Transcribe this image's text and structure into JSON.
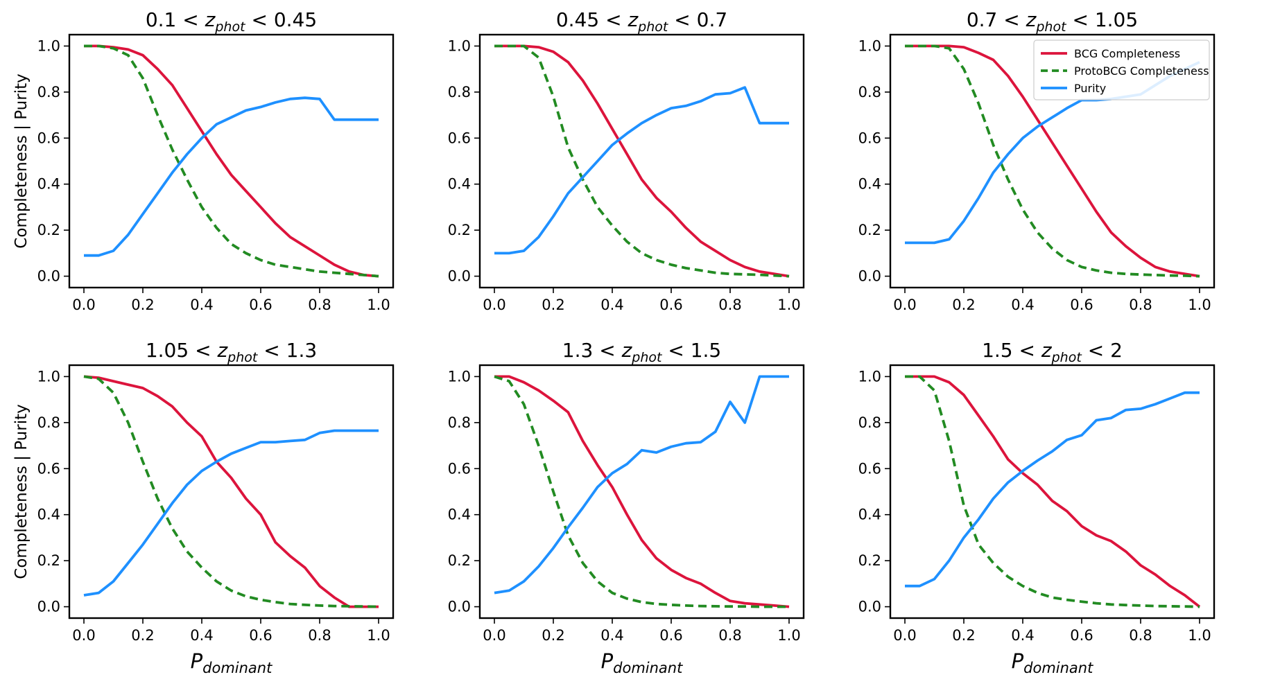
{
  "figure": {
    "ylabel": "Completeness | Purity",
    "xlabel_base": "P",
    "xlabel_sub": "dominant",
    "colors": {
      "bcg": "#dc143c",
      "proto": "#228b22",
      "purity": "#1e90ff"
    }
  },
  "legend": {
    "placement": "top-right of panel 3",
    "entries": [
      {
        "key": "bcg",
        "label": "BCG Completeness",
        "style": "solid"
      },
      {
        "key": "proto",
        "label": "ProtoBCG Completeness",
        "style": "dashed"
      },
      {
        "key": "purity",
        "label": "Purity",
        "style": "solid"
      }
    ]
  },
  "chart_data": [
    {
      "type": "line",
      "title": {
        "lo": "0.1",
        "hi": "0.45",
        "var": "z",
        "sub": "phot"
      },
      "xlim": [
        0,
        1
      ],
      "ylim": [
        0,
        1
      ],
      "xticks": [
        "0.0",
        "0.2",
        "0.4",
        "0.6",
        "0.8",
        "1.0"
      ],
      "yticks": [
        "0.0",
        "0.2",
        "0.4",
        "0.6",
        "0.8",
        "1.0"
      ],
      "x": [
        0,
        0.05,
        0.1,
        0.15,
        0.2,
        0.25,
        0.3,
        0.35,
        0.4,
        0.45,
        0.5,
        0.55,
        0.6,
        0.65,
        0.7,
        0.75,
        0.8,
        0.85,
        0.9,
        0.95,
        1.0
      ],
      "series": [
        {
          "key": "bcg",
          "name": "BCG Completeness",
          "values": [
            1.0,
            1.0,
            0.995,
            0.985,
            0.96,
            0.9,
            0.83,
            0.73,
            0.63,
            0.53,
            0.44,
            0.37,
            0.3,
            0.23,
            0.17,
            0.13,
            0.09,
            0.05,
            0.02,
            0.005,
            0.0
          ]
        },
        {
          "key": "proto",
          "name": "ProtoBCG Completeness",
          "values": [
            1.0,
            1.0,
            0.99,
            0.96,
            0.86,
            0.7,
            0.55,
            0.42,
            0.3,
            0.21,
            0.14,
            0.1,
            0.07,
            0.05,
            0.04,
            0.03,
            0.02,
            0.015,
            0.01,
            0.005,
            0.0
          ]
        },
        {
          "key": "purity",
          "name": "Purity",
          "values": [
            0.09,
            0.09,
            0.11,
            0.18,
            0.27,
            0.36,
            0.45,
            0.53,
            0.6,
            0.66,
            0.69,
            0.72,
            0.735,
            0.755,
            0.77,
            0.775,
            0.77,
            0.68,
            0.68,
            0.68,
            0.68
          ]
        }
      ]
    },
    {
      "type": "line",
      "title": {
        "lo": "0.45",
        "hi": "0.7",
        "var": "z",
        "sub": "phot"
      },
      "xlim": [
        0,
        1
      ],
      "ylim": [
        0,
        1
      ],
      "xticks": [
        "0.0",
        "0.2",
        "0.4",
        "0.6",
        "0.8",
        "1.0"
      ],
      "yticks": [
        "0.0",
        "0.2",
        "0.4",
        "0.6",
        "0.8",
        "1.0"
      ],
      "x": [
        0,
        0.05,
        0.1,
        0.15,
        0.2,
        0.25,
        0.3,
        0.35,
        0.4,
        0.45,
        0.5,
        0.55,
        0.6,
        0.65,
        0.7,
        0.75,
        0.8,
        0.85,
        0.9,
        0.95,
        1.0
      ],
      "series": [
        {
          "key": "bcg",
          "name": "BCG Completeness",
          "values": [
            1.0,
            1.0,
            1.0,
            0.995,
            0.975,
            0.93,
            0.85,
            0.75,
            0.64,
            0.53,
            0.42,
            0.34,
            0.28,
            0.21,
            0.15,
            0.11,
            0.07,
            0.04,
            0.02,
            0.01,
            0.0
          ]
        },
        {
          "key": "proto",
          "name": "ProtoBCG Completeness",
          "values": [
            1.0,
            1.0,
            1.0,
            0.95,
            0.78,
            0.56,
            0.42,
            0.3,
            0.22,
            0.15,
            0.1,
            0.07,
            0.05,
            0.035,
            0.025,
            0.015,
            0.01,
            0.008,
            0.006,
            0.003,
            0.0
          ]
        },
        {
          "key": "purity",
          "name": "Purity",
          "values": [
            0.1,
            0.1,
            0.11,
            0.17,
            0.26,
            0.36,
            0.43,
            0.5,
            0.57,
            0.62,
            0.665,
            0.7,
            0.73,
            0.74,
            0.76,
            0.79,
            0.795,
            0.82,
            0.665,
            0.665,
            0.665
          ]
        }
      ]
    },
    {
      "type": "line",
      "title": {
        "lo": "0.7",
        "hi": "1.05",
        "var": "z",
        "sub": "phot"
      },
      "xlim": [
        0,
        1
      ],
      "ylim": [
        0,
        1
      ],
      "xticks": [
        "0.0",
        "0.2",
        "0.4",
        "0.6",
        "0.8",
        "1.0"
      ],
      "yticks": [
        "0.0",
        "0.2",
        "0.4",
        "0.6",
        "0.8",
        "1.0"
      ],
      "x": [
        0,
        0.05,
        0.1,
        0.15,
        0.2,
        0.25,
        0.3,
        0.35,
        0.4,
        0.45,
        0.5,
        0.55,
        0.6,
        0.65,
        0.7,
        0.75,
        0.8,
        0.85,
        0.9,
        0.95,
        1.0
      ],
      "series": [
        {
          "key": "bcg",
          "name": "BCG Completeness",
          "values": [
            1.0,
            1.0,
            1.0,
            1.0,
            0.995,
            0.97,
            0.94,
            0.87,
            0.78,
            0.68,
            0.58,
            0.48,
            0.38,
            0.28,
            0.19,
            0.13,
            0.08,
            0.04,
            0.02,
            0.01,
            0.0
          ]
        },
        {
          "key": "proto",
          "name": "ProtoBCG Completeness",
          "values": [
            1.0,
            1.0,
            1.0,
            0.99,
            0.9,
            0.75,
            0.57,
            0.42,
            0.29,
            0.19,
            0.12,
            0.07,
            0.04,
            0.025,
            0.015,
            0.01,
            0.007,
            0.005,
            0.003,
            0.002,
            0.0
          ]
        },
        {
          "key": "purity",
          "name": "Purity",
          "values": [
            0.145,
            0.145,
            0.145,
            0.16,
            0.24,
            0.34,
            0.45,
            0.53,
            0.6,
            0.65,
            0.69,
            0.73,
            0.765,
            0.765,
            0.77,
            0.78,
            0.79,
            0.83,
            0.87,
            0.9,
            0.93
          ]
        }
      ]
    },
    {
      "type": "line",
      "title": {
        "lo": "1.05",
        "hi": "1.3",
        "var": "z",
        "sub": "phot"
      },
      "xlim": [
        0,
        1
      ],
      "ylim": [
        0,
        1
      ],
      "xticks": [
        "0.0",
        "0.2",
        "0.4",
        "0.6",
        "0.8",
        "1.0"
      ],
      "yticks": [
        "0.0",
        "0.2",
        "0.4",
        "0.6",
        "0.8",
        "1.0"
      ],
      "x": [
        0,
        0.05,
        0.1,
        0.15,
        0.2,
        0.25,
        0.3,
        0.35,
        0.4,
        0.45,
        0.5,
        0.55,
        0.6,
        0.65,
        0.7,
        0.75,
        0.8,
        0.85,
        0.9,
        0.95,
        1.0
      ],
      "series": [
        {
          "key": "bcg",
          "name": "BCG Completeness",
          "values": [
            1.0,
            0.995,
            0.98,
            0.965,
            0.95,
            0.915,
            0.87,
            0.8,
            0.74,
            0.63,
            0.56,
            0.47,
            0.4,
            0.28,
            0.22,
            0.17,
            0.09,
            0.04,
            0.0,
            0.0,
            0.0
          ]
        },
        {
          "key": "proto",
          "name": "ProtoBCG Completeness",
          "values": [
            1.0,
            0.99,
            0.93,
            0.8,
            0.63,
            0.47,
            0.34,
            0.24,
            0.17,
            0.11,
            0.07,
            0.045,
            0.03,
            0.02,
            0.012,
            0.008,
            0.005,
            0.003,
            0.002,
            0.001,
            0.0
          ]
        },
        {
          "key": "purity",
          "name": "Purity",
          "values": [
            0.05,
            0.06,
            0.11,
            0.19,
            0.27,
            0.36,
            0.45,
            0.53,
            0.59,
            0.63,
            0.665,
            0.69,
            0.715,
            0.715,
            0.72,
            0.725,
            0.755,
            0.765,
            0.765,
            0.765,
            0.765
          ]
        }
      ]
    },
    {
      "type": "line",
      "title": {
        "lo": "1.3",
        "hi": "1.5",
        "var": "z",
        "sub": "phot"
      },
      "xlim": [
        0,
        1
      ],
      "ylim": [
        0,
        1
      ],
      "xticks": [
        "0.0",
        "0.2",
        "0.4",
        "0.6",
        "0.8",
        "1.0"
      ],
      "yticks": [
        "0.0",
        "0.2",
        "0.4",
        "0.6",
        "0.8",
        "1.0"
      ],
      "x": [
        0,
        0.05,
        0.1,
        0.15,
        0.2,
        0.25,
        0.3,
        0.35,
        0.4,
        0.45,
        0.5,
        0.55,
        0.6,
        0.65,
        0.7,
        0.75,
        0.8,
        0.85,
        0.9,
        0.95,
        1.0
      ],
      "series": [
        {
          "key": "bcg",
          "name": "BCG Completeness",
          "values": [
            1.0,
            1.0,
            0.975,
            0.94,
            0.895,
            0.845,
            0.72,
            0.615,
            0.52,
            0.4,
            0.29,
            0.21,
            0.16,
            0.125,
            0.1,
            0.06,
            0.025,
            0.015,
            0.01,
            0.005,
            0.0
          ]
        },
        {
          "key": "proto",
          "name": "ProtoBCG Completeness",
          "values": [
            1.0,
            0.98,
            0.88,
            0.7,
            0.5,
            0.31,
            0.19,
            0.11,
            0.06,
            0.035,
            0.02,
            0.012,
            0.008,
            0.005,
            0.003,
            0.002,
            0.001,
            0.001,
            0.0,
            0.0,
            0.0
          ]
        },
        {
          "key": "purity",
          "name": "Purity",
          "values": [
            0.06,
            0.07,
            0.11,
            0.175,
            0.255,
            0.345,
            0.43,
            0.52,
            0.58,
            0.62,
            0.68,
            0.67,
            0.695,
            0.71,
            0.715,
            0.76,
            0.89,
            0.8,
            1.0,
            1.0,
            1.0
          ]
        }
      ]
    },
    {
      "type": "line",
      "title": {
        "lo": "1.5",
        "hi": "2",
        "var": "z",
        "sub": "phot"
      },
      "xlim": [
        0,
        1
      ],
      "ylim": [
        0,
        1
      ],
      "xticks": [
        "0.0",
        "0.2",
        "0.4",
        "0.6",
        "0.8",
        "1.0"
      ],
      "yticks": [
        "0.0",
        "0.2",
        "0.4",
        "0.6",
        "0.8",
        "1.0"
      ],
      "x": [
        0,
        0.05,
        0.1,
        0.15,
        0.2,
        0.25,
        0.3,
        0.35,
        0.4,
        0.45,
        0.5,
        0.55,
        0.6,
        0.65,
        0.7,
        0.75,
        0.8,
        0.85,
        0.9,
        0.95,
        1.0
      ],
      "series": [
        {
          "key": "bcg",
          "name": "BCG Completeness",
          "values": [
            1.0,
            1.0,
            1.0,
            0.975,
            0.92,
            0.83,
            0.74,
            0.64,
            0.58,
            0.53,
            0.46,
            0.415,
            0.35,
            0.31,
            0.285,
            0.24,
            0.18,
            0.14,
            0.09,
            0.05,
            0.0
          ]
        },
        {
          "key": "proto",
          "name": "ProtoBCG Completeness",
          "values": [
            1.0,
            1.0,
            0.94,
            0.72,
            0.44,
            0.27,
            0.19,
            0.13,
            0.09,
            0.06,
            0.04,
            0.03,
            0.022,
            0.015,
            0.01,
            0.007,
            0.005,
            0.003,
            0.002,
            0.001,
            0.0
          ]
        },
        {
          "key": "purity",
          "name": "Purity",
          "values": [
            0.09,
            0.09,
            0.12,
            0.2,
            0.3,
            0.38,
            0.47,
            0.54,
            0.59,
            0.635,
            0.675,
            0.725,
            0.745,
            0.81,
            0.82,
            0.855,
            0.86,
            0.88,
            0.905,
            0.93,
            0.93
          ]
        }
      ]
    }
  ]
}
